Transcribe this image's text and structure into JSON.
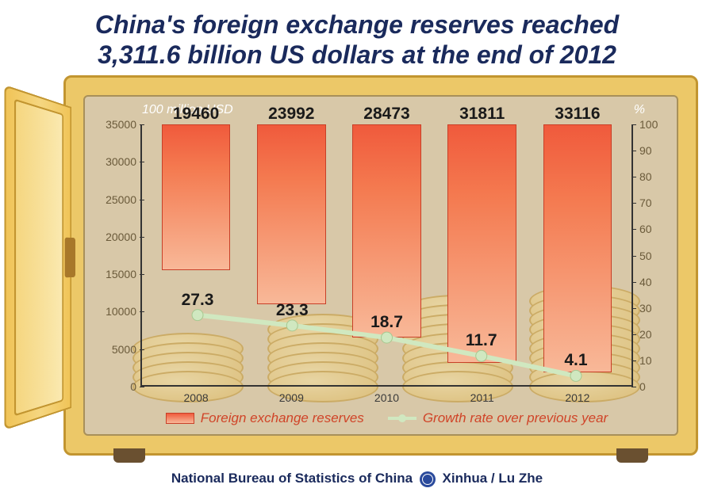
{
  "title_line1": "China's foreign exchange reserves reached",
  "title_line2": "3,311.6 billion US dollars at the end of 2012",
  "chart": {
    "type": "bar+line",
    "y_left_label": "100 million USD",
    "y_right_label": "%",
    "y_left": {
      "min": 0,
      "max": 35000,
      "step": 5000,
      "ticks": [
        "0",
        "5000",
        "10000",
        "15000",
        "20000",
        "25000",
        "30000",
        "35000"
      ]
    },
    "y_right": {
      "min": 0,
      "max": 100,
      "step": 10,
      "ticks": [
        "0",
        "10",
        "20",
        "30",
        "40",
        "50",
        "60",
        "70",
        "80",
        "90",
        "100"
      ]
    },
    "categories": [
      "2008",
      "2009",
      "2010",
      "2011",
      "2012"
    ],
    "bars": {
      "label": "Foreign exchange reserves",
      "values": [
        19460,
        23992,
        28473,
        31811,
        33116
      ],
      "value_labels": [
        "19460",
        "23992",
        "28473",
        "31811",
        "33116"
      ],
      "fill_gradient": [
        "#f05a3c",
        "#f8b898"
      ],
      "border": "#c84028"
    },
    "line": {
      "label": "Growth rate over previous year",
      "values": [
        27.3,
        23.3,
        18.7,
        11.7,
        4.1
      ],
      "value_labels": [
        "27.3",
        "23.3",
        "18.7",
        "11.7",
        "4.1"
      ],
      "color": "#d0e8c0",
      "width": 6,
      "marker_radius": 7
    },
    "background_color": "#d8c8a8",
    "axis_color": "#333333",
    "tick_label_color": "#6a5a3a",
    "legend_color": "#d04428"
  },
  "footer": {
    "source": "National Bureau of Statistics of China",
    "agency": "Xinhua / Lu Zhe"
  },
  "colors": {
    "title": "#1a2a5c",
    "safe_outer": "#ecc868",
    "safe_border": "#c29530",
    "safe_inner": "#d8c8a8",
    "coin": "#e0b858"
  }
}
